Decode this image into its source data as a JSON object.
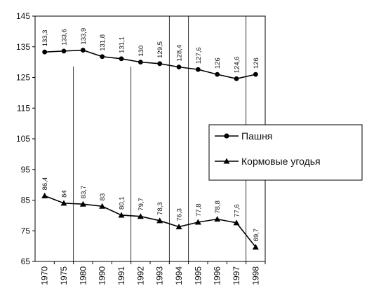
{
  "chart_data": {
    "type": "line",
    "categories": [
      "1970",
      "1975",
      "1980",
      "1990",
      "1991",
      "1992",
      "1993",
      "1994",
      "1995",
      "1996",
      "1997",
      "1998"
    ],
    "series": [
      {
        "name": "Пашня",
        "marker": "circle",
        "values": [
          133.3,
          133.6,
          133.9,
          131.8,
          131.1,
          130,
          129.5,
          128.4,
          127.6,
          126,
          124.6,
          126
        ],
        "labels": [
          "133,3",
          "133,6",
          "133,9",
          "131,8",
          "131,1",
          "130",
          "129,5",
          "128,4",
          "127,6",
          "126",
          "124,6",
          "126"
        ]
      },
      {
        "name": "Кормовые угодья",
        "marker": "triangle",
        "values": [
          86.4,
          84,
          83.7,
          83,
          80.1,
          79.7,
          78.3,
          76.3,
          77.8,
          78.8,
          77.6,
          69.7
        ],
        "labels": [
          "86,4",
          "84",
          "83,7",
          "83",
          "80,1",
          "79,7",
          "78,3",
          "76,3",
          "77,8",
          "78,8",
          "77,6",
          "69,7"
        ]
      }
    ],
    "y_ticks": [
      "65",
      "75",
      "85",
      "95",
      "105",
      "115",
      "125",
      "135",
      "145"
    ],
    "ylim": [
      65,
      145
    ],
    "legend": {
      "position": "right",
      "items": [
        "Пашня",
        "Кормовые угодья"
      ]
    },
    "line_color": "#000000"
  }
}
